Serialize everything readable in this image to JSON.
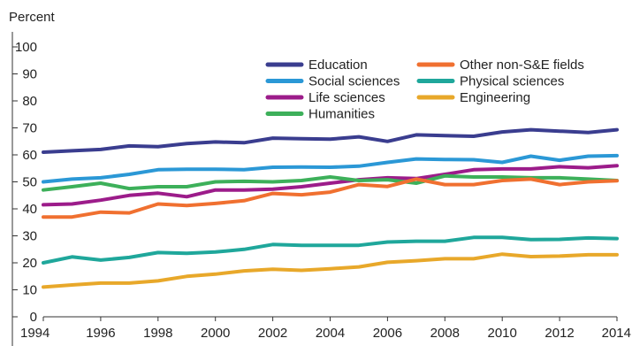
{
  "chart_data": {
    "type": "line",
    "title": "",
    "ylabel": "Percent",
    "xlabel": "",
    "ylim": [
      0,
      100
    ],
    "xlim": [
      1994,
      2014
    ],
    "yticks": [
      0,
      10,
      20,
      30,
      40,
      50,
      60,
      70,
      80,
      90,
      100
    ],
    "xticks": [
      1994,
      1996,
      1998,
      2000,
      2002,
      2004,
      2006,
      2008,
      2010,
      2012,
      2014
    ],
    "grid": false,
    "legend_position": "top",
    "x": [
      1994,
      1995,
      1996,
      1997,
      1998,
      1999,
      2000,
      2001,
      2002,
      2003,
      2004,
      2005,
      2006,
      2007,
      2008,
      2009,
      2010,
      2011,
      2012,
      2013,
      2014
    ],
    "series": [
      {
        "name": "Education",
        "color": "#3a3d8f",
        "values": [
          61,
          61.5,
          62,
          63.3,
          63,
          64.2,
          64.8,
          64.5,
          66.2,
          66,
          65.8,
          66.7,
          65,
          67.4,
          67.1,
          66.9,
          68.5,
          69.3,
          68.8,
          68.3,
          69.3
        ]
      },
      {
        "name": "Social sciences",
        "color": "#2b98d6",
        "values": [
          50,
          51,
          51.5,
          52.8,
          54.5,
          54.7,
          54.7,
          54.5,
          55.4,
          55.5,
          55.4,
          55.8,
          57.2,
          58.5,
          58.3,
          58.2,
          57.2,
          59.5,
          58,
          59.5,
          59.7
        ]
      },
      {
        "name": "Life sciences",
        "color": "#9c1c8a",
        "values": [
          41.5,
          41.8,
          43.2,
          45,
          45.8,
          44.5,
          47,
          47,
          47.3,
          48.2,
          49.5,
          50.8,
          51.5,
          51.2,
          52.8,
          54.5,
          54.8,
          54.8,
          55.6,
          55.2,
          56
        ]
      },
      {
        "name": "Humanities",
        "color": "#3db05a",
        "values": [
          47,
          48.2,
          49.5,
          47.5,
          48.2,
          48.2,
          50,
          50.2,
          50,
          50.5,
          51.8,
          50.5,
          50.8,
          49.5,
          52.2,
          51.8,
          51.8,
          51.5,
          51.5,
          51,
          50.5
        ]
      },
      {
        "name": "Other non-S&E fields",
        "color": "#f07030",
        "values": [
          37,
          37,
          38.8,
          38.5,
          41.8,
          41.2,
          42,
          43,
          45.7,
          45.2,
          46.2,
          49,
          48.3,
          51,
          49,
          49,
          50.5,
          51,
          49,
          50,
          50.4
        ]
      },
      {
        "name": "Physical sciences",
        "color": "#1fa79b",
        "values": [
          20,
          22.2,
          21,
          22,
          23.8,
          23.5,
          24,
          25,
          26.8,
          26.5,
          26.5,
          26.5,
          27.7,
          28,
          28,
          29.4,
          29.4,
          28.6,
          28.7,
          29.2,
          29
        ]
      },
      {
        "name": "Engineering",
        "color": "#e8a82a",
        "values": [
          11,
          11.8,
          12.5,
          12.5,
          13.3,
          15,
          15.8,
          17,
          17.6,
          17.2,
          17.8,
          18.5,
          20.2,
          20.8,
          21.5,
          21.5,
          23.2,
          22.3,
          22.5,
          23,
          23
        ]
      }
    ]
  }
}
